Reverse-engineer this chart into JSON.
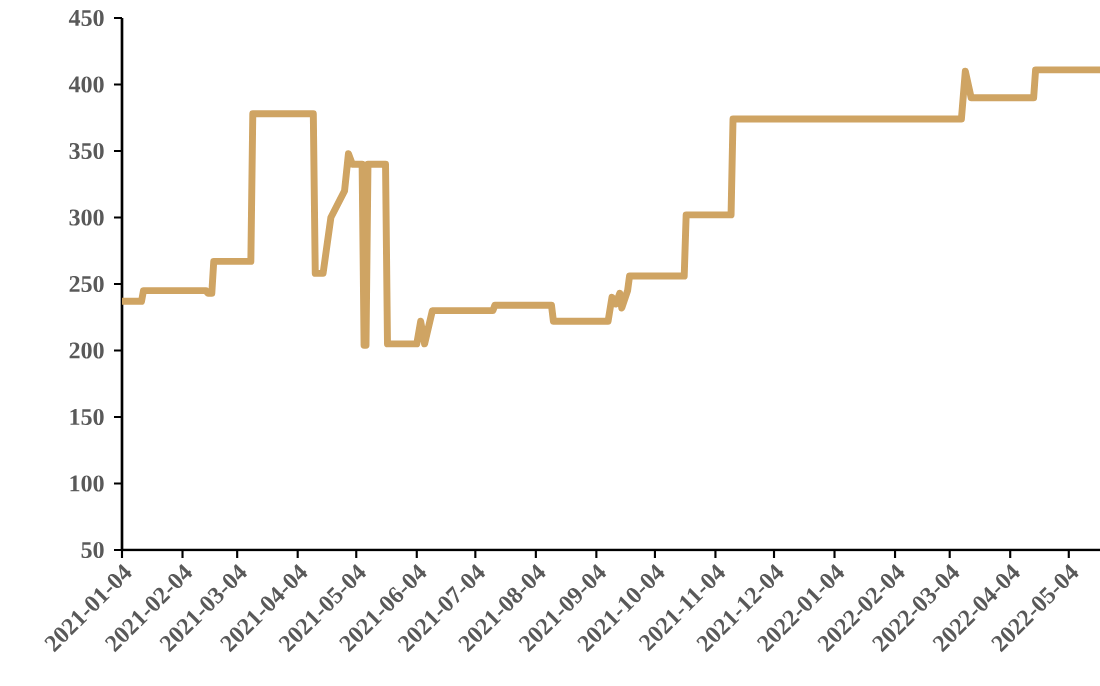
{
  "chart_data": {
    "type": "line",
    "xlim": [
      "2021-01-04",
      "2022-05-20"
    ],
    "ylim": [
      50,
      450
    ],
    "yticks": [
      50,
      100,
      150,
      200,
      250,
      300,
      350,
      400,
      450
    ],
    "xticks": [
      "2021-01-04",
      "2021-02-04",
      "2021-03-04",
      "2021-04-04",
      "2021-05-04",
      "2021-06-04",
      "2021-07-04",
      "2021-08-04",
      "2021-09-04",
      "2021-10-04",
      "2021-11-04",
      "2021-12-04",
      "2022-01-04",
      "2022-02-04",
      "2022-03-04",
      "2022-04-04",
      "2022-05-04"
    ],
    "grid": false,
    "marker": "none",
    "line_style": "solid",
    "series": [
      {
        "color": "#cfa463",
        "x": [
          "2021-01-04",
          "2021-01-14",
          "2021-01-15",
          "2021-02-16",
          "2021-02-17",
          "2021-02-19",
          "2021-02-20",
          "2021-03-11",
          "2021-03-12",
          "2021-04-12",
          "2021-04-13",
          "2021-04-17",
          "2021-04-21",
          "2021-04-28",
          "2021-04-30",
          "2021-05-02",
          "2021-05-07",
          "2021-05-08",
          "2021-05-09",
          "2021-05-10",
          "2021-05-19",
          "2021-05-20",
          "2021-06-04",
          "2021-06-06",
          "2021-06-08",
          "2021-06-12",
          "2021-07-13",
          "2021-07-14",
          "2021-08-12",
          "2021-08-13",
          "2021-09-10",
          "2021-09-12",
          "2021-09-14",
          "2021-09-16",
          "2021-09-17",
          "2021-09-20",
          "2021-09-21",
          "2021-09-24",
          "2021-10-19",
          "2021-10-20",
          "2021-11-12",
          "2021-11-13",
          "2022-03-10",
          "2022-03-12",
          "2022-03-15",
          "2022-04-16",
          "2022-04-17",
          "2022-05-20"
        ],
        "values": [
          237,
          237,
          245,
          245,
          243,
          243,
          267,
          267,
          378,
          378,
          258,
          258,
          300,
          320,
          348,
          340,
          340,
          204,
          204,
          340,
          340,
          205,
          205,
          222,
          205,
          230,
          230,
          234,
          234,
          222,
          222,
          240,
          235,
          243,
          232,
          245,
          256,
          256,
          256,
          302,
          302,
          374,
          374,
          410,
          390,
          390,
          411,
          411
        ]
      }
    ]
  }
}
